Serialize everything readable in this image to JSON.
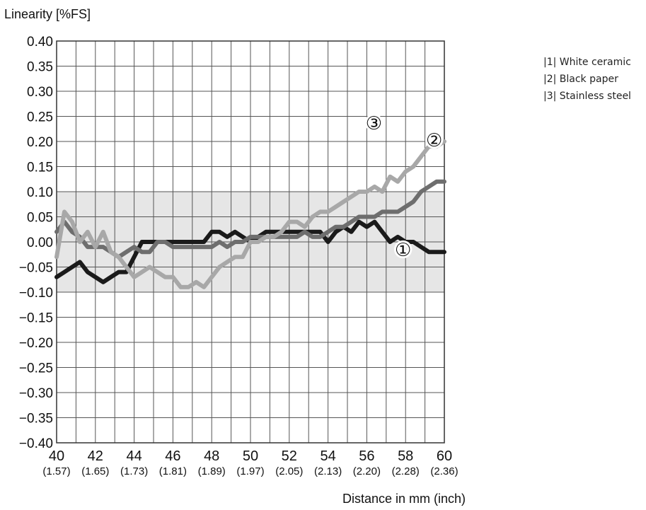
{
  "chart_data": {
    "type": "line",
    "ylabel": "Linearity [%FS]",
    "xlabel": "Distance in mm (inch)",
    "xlim": [
      40,
      60
    ],
    "ylim": [
      -0.4,
      0.4
    ],
    "grid": true,
    "tolerance_band": [
      -0.1,
      0.1
    ],
    "x_ticks": [
      {
        "value": 40,
        "label": "40"
      },
      {
        "value": 42,
        "label": "42"
      },
      {
        "value": 44,
        "label": "44"
      },
      {
        "value": 46,
        "label": "46"
      },
      {
        "value": 48,
        "label": "48"
      },
      {
        "value": 50,
        "label": "50"
      },
      {
        "value": 52,
        "label": "52"
      },
      {
        "value": 54,
        "label": "54"
      },
      {
        "value": 56,
        "label": "56"
      },
      {
        "value": 58,
        "label": "58"
      },
      {
        "value": 60,
        "label": "60"
      }
    ],
    "x_sub_ticks": [
      {
        "value": 40,
        "label": "(1.57)"
      },
      {
        "value": 42,
        "label": "(1.65)"
      },
      {
        "value": 44,
        "label": "(1.73)"
      },
      {
        "value": 46,
        "label": "(1.81)"
      },
      {
        "value": 48,
        "label": "(1.89)"
      },
      {
        "value": 50,
        "label": "(1.97)"
      },
      {
        "value": 52,
        "label": "(2.05)"
      },
      {
        "value": 54,
        "label": "(2.13)"
      },
      {
        "value": 56,
        "label": "(2.20)"
      },
      {
        "value": 58,
        "label": "(2.28)"
      },
      {
        "value": 60,
        "label": "(2.36)"
      }
    ],
    "y_ticks": [
      {
        "value": 0.4,
        "label": "0.40"
      },
      {
        "value": 0.35,
        "label": "0.35"
      },
      {
        "value": 0.3,
        "label": "0.30"
      },
      {
        "value": 0.25,
        "label": "0.25"
      },
      {
        "value": 0.2,
        "label": "0.20"
      },
      {
        "value": 0.15,
        "label": "0.15"
      },
      {
        "value": 0.1,
        "label": "0.10"
      },
      {
        "value": 0.05,
        "label": "0.05"
      },
      {
        "value": 0.0,
        "label": "0.00"
      },
      {
        "value": -0.05,
        "label": "−0.05"
      },
      {
        "value": -0.1,
        "label": "−0.10"
      },
      {
        "value": -0.15,
        "label": "−0.15"
      },
      {
        "value": -0.2,
        "label": "−0.20"
      },
      {
        "value": -0.25,
        "label": "−0.25"
      },
      {
        "value": -0.3,
        "label": "−0.30"
      },
      {
        "value": -0.35,
        "label": "−0.35"
      },
      {
        "value": -0.4,
        "label": "−0.40"
      }
    ],
    "series": [
      {
        "name": "White ceramic",
        "marker": "①",
        "color": "#1a1a1a",
        "marker_at": [
          60.0,
          -0.02
        ],
        "x": [
          40.0,
          40.4,
          40.8,
          41.2,
          41.6,
          42.0,
          42.4,
          42.8,
          43.2,
          43.6,
          44.0,
          44.4,
          44.8,
          45.2,
          45.6,
          46.0,
          46.4,
          46.8,
          47.2,
          47.6,
          48.0,
          48.4,
          48.8,
          49.2,
          49.6,
          50.0,
          50.4,
          50.8,
          51.2,
          51.6,
          52.0,
          52.4,
          52.8,
          53.2,
          53.6,
          54.0,
          54.4,
          54.8,
          55.2,
          55.6,
          56.0,
          56.4,
          56.8,
          57.2,
          57.6,
          58.0,
          58.4,
          58.8,
          59.2,
          59.6,
          60.0
        ],
        "y": [
          -0.07,
          -0.06,
          -0.05,
          -0.04,
          -0.06,
          -0.07,
          -0.08,
          -0.07,
          -0.06,
          -0.06,
          -0.03,
          0.0,
          0.0,
          0.0,
          0.0,
          0.0,
          0.0,
          0.0,
          0.0,
          0.0,
          0.02,
          0.02,
          0.01,
          0.02,
          0.01,
          0.0,
          0.01,
          0.02,
          0.02,
          0.02,
          0.02,
          0.02,
          0.02,
          0.02,
          0.02,
          0.0,
          0.02,
          0.03,
          0.02,
          0.04,
          0.03,
          0.04,
          0.02,
          0.0,
          0.01,
          0.0,
          0.0,
          -0.01,
          -0.02,
          -0.02,
          -0.02
        ]
      },
      {
        "name": "Black paper",
        "marker": "②",
        "color": "#6e6e6e",
        "marker_at": [
          60.0,
          0.12
        ],
        "x": [
          40.0,
          40.4,
          40.8,
          41.2,
          41.6,
          42.0,
          42.4,
          42.8,
          43.2,
          43.6,
          44.0,
          44.4,
          44.8,
          45.2,
          45.6,
          46.0,
          46.4,
          46.8,
          47.2,
          47.6,
          48.0,
          48.4,
          48.8,
          49.2,
          49.6,
          50.0,
          50.4,
          50.8,
          51.2,
          51.6,
          52.0,
          52.4,
          52.8,
          53.2,
          53.6,
          54.0,
          54.4,
          54.8,
          55.2,
          55.6,
          56.0,
          56.4,
          56.8,
          57.2,
          57.6,
          58.0,
          58.4,
          58.8,
          59.2,
          59.6,
          60.0
        ],
        "y": [
          0.02,
          0.04,
          0.02,
          0.01,
          -0.01,
          -0.01,
          -0.01,
          -0.02,
          -0.03,
          -0.02,
          -0.01,
          -0.02,
          -0.02,
          0.0,
          0.0,
          -0.01,
          -0.01,
          -0.01,
          -0.01,
          -0.01,
          -0.01,
          0.0,
          -0.01,
          0.0,
          0.0,
          0.01,
          0.01,
          0.01,
          0.01,
          0.01,
          0.01,
          0.01,
          0.02,
          0.01,
          0.01,
          0.02,
          0.03,
          0.03,
          0.04,
          0.05,
          0.05,
          0.05,
          0.06,
          0.06,
          0.06,
          0.07,
          0.08,
          0.1,
          0.11,
          0.12,
          0.12
        ]
      },
      {
        "name": "Stainless steel",
        "marker": "③",
        "color": "#a8a8a8",
        "marker_at": [
          57.4,
          0.165
        ],
        "x": [
          40.0,
          40.4,
          40.8,
          41.2,
          41.6,
          42.0,
          42.4,
          42.8,
          43.2,
          43.6,
          44.0,
          44.4,
          44.8,
          45.2,
          45.6,
          46.0,
          46.4,
          46.8,
          47.2,
          47.6,
          48.0,
          48.4,
          48.8,
          49.2,
          49.6,
          50.0,
          50.4,
          50.8,
          51.2,
          51.6,
          52.0,
          52.4,
          52.8,
          53.2,
          53.6,
          54.0,
          54.4,
          54.8,
          55.2,
          55.6,
          56.0,
          56.4,
          56.8,
          57.2,
          57.6,
          58.0,
          58.4,
          58.8,
          59.2,
          59.6,
          60.0
        ],
        "y": [
          -0.03,
          0.06,
          0.04,
          0.0,
          0.02,
          -0.01,
          0.02,
          -0.02,
          -0.03,
          -0.05,
          -0.07,
          -0.06,
          -0.05,
          -0.06,
          -0.07,
          -0.07,
          -0.09,
          -0.09,
          -0.08,
          -0.09,
          -0.07,
          -0.05,
          -0.04,
          -0.03,
          -0.03,
          0.0,
          0.0,
          0.01,
          0.01,
          0.02,
          0.04,
          0.04,
          0.03,
          0.05,
          0.06,
          0.06,
          0.07,
          0.08,
          0.09,
          0.1,
          0.1,
          0.11,
          0.1,
          0.13,
          0.12,
          0.14,
          0.15,
          0.17,
          0.19,
          0.19,
          0.2
        ]
      }
    ]
  },
  "legend": [
    {
      "label": "|1| White ceramic"
    },
    {
      "label": "|2| Black paper"
    },
    {
      "label": "|3| Stainless steel"
    }
  ]
}
